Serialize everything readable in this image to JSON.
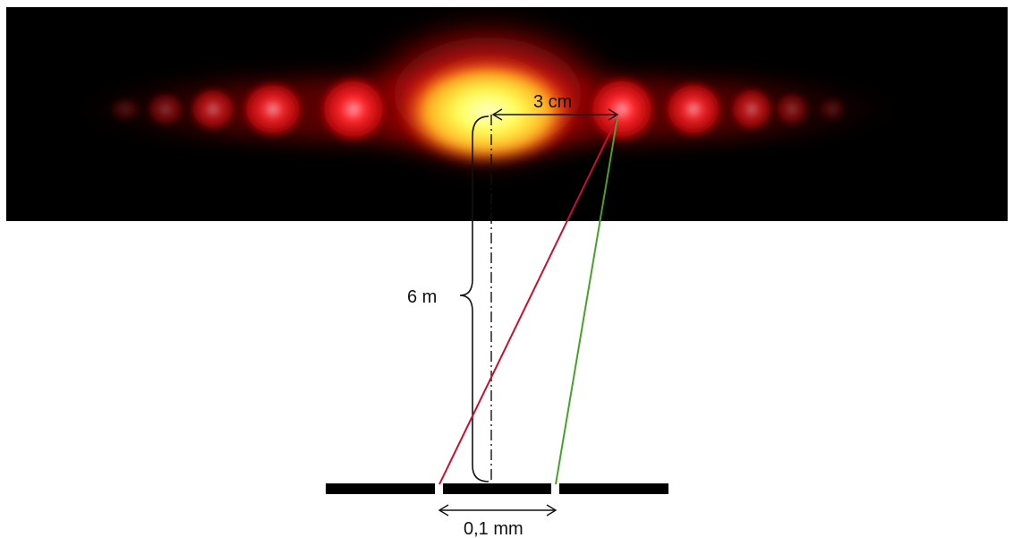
{
  "labels": {
    "fringe_distance": "3 cm",
    "screen_distance": "6 m",
    "slit_width": "0,1 mm"
  },
  "colors": {
    "background": "#ffffff",
    "photo_background": "#000000",
    "fringe_red": "#ff1a1a",
    "fringe_core": "#ffff66",
    "red_ray": "#c8102e",
    "green_ray": "#4aa02c",
    "barrier": "#000000",
    "annotation": "#111111"
  }
}
